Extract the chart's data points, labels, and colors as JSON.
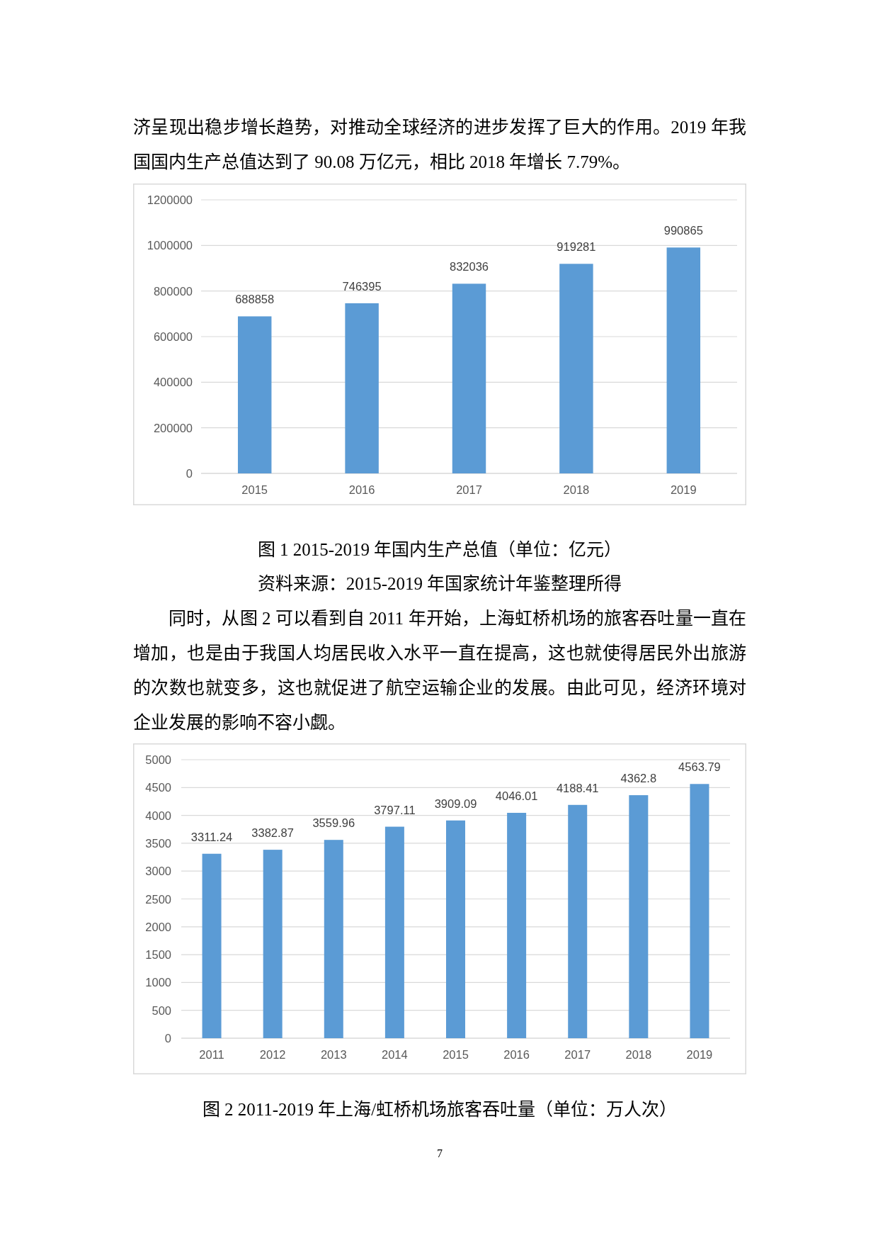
{
  "chart_data": [
    {
      "type": "bar",
      "title": "图 1 2015-2019 年国内生产总值（单位：亿元）",
      "annotations": [
        "济呈现出稳步增长趋势，对推动全球经济的进步发挥了巨大的作用。2019 年我国国内生产总值达到了 90.08 万亿元，相比 2018 年增长 7.79%。",
        "资料来源：2015-2019 年国家统计年鉴整理所得"
      ],
      "categories": [
        "2015",
        "2016",
        "2017",
        "2018",
        "2019"
      ],
      "values": [
        688858,
        746395,
        832036,
        919281,
        990865
      ],
      "color": "#5b9bd5",
      "ylim": [
        0,
        1200000
      ],
      "yticks": [
        0,
        200000,
        400000,
        600000,
        800000,
        1000000,
        1200000
      ],
      "grid": "y",
      "data_labels": true
    },
    {
      "type": "bar",
      "title": "图 2 2011-2019 年上海/虹桥机场旅客吞吐量（单位：万人次）",
      "annotations": [
        "同时，从图 2 可以看到自 2011 年开始，上海虹桥机场的旅客吞吐量一直在增加，也是由于我国人均居民收入水平一直在提高，这也就使得居民外出旅游的次数也就变多，这也就促进了航空运输企业的发展。由此可见，经济环境对企业发展的影响不容小觑。",
        "7"
      ],
      "categories": [
        "2011",
        "2012",
        "2013",
        "2014",
        "2015",
        "2016",
        "2017",
        "2018",
        "2019"
      ],
      "values": [
        3311.24,
        3382.87,
        3559.96,
        3797.11,
        3909.09,
        4046.01,
        4188.41,
        4362.8,
        4563.79
      ],
      "color": "#5b9bd5",
      "ylim": [
        0,
        5000
      ],
      "yticks": [
        0,
        500,
        1000,
        1500,
        2000,
        2500,
        3000,
        3500,
        4000,
        4500,
        5000
      ],
      "grid": "y",
      "data_labels": true
    }
  ]
}
